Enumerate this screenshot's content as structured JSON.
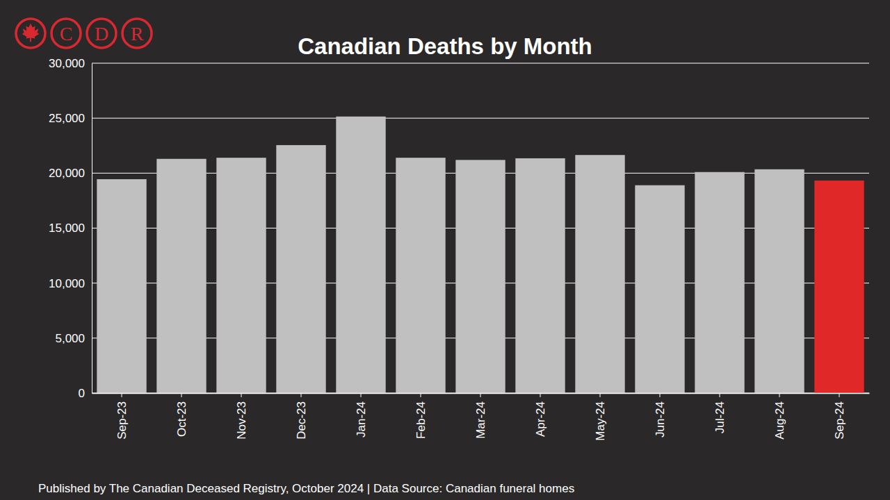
{
  "chart_data": {
    "type": "bar",
    "title": "Canadian Deaths by Month",
    "categories": [
      "Sep-23",
      "Oct-23",
      "Nov-23",
      "Dec-23",
      "Jan-24",
      "Feb-24",
      "Mar-24",
      "Apr-24",
      "May-24",
      "Jun-24",
      "Jul-24",
      "Aug-24",
      "Sep-24"
    ],
    "values": [
      19450,
      21300,
      21400,
      22550,
      25150,
      21400,
      21200,
      21350,
      21650,
      18900,
      20100,
      20350,
      19330
    ],
    "colors": [
      "#c0c0c0",
      "#c0c0c0",
      "#c0c0c0",
      "#c0c0c0",
      "#c0c0c0",
      "#c0c0c0",
      "#c0c0c0",
      "#c0c0c0",
      "#c0c0c0",
      "#c0c0c0",
      "#c0c0c0",
      "#c0c0c0",
      "#e02828"
    ],
    "ylim": [
      0,
      30000
    ],
    "yticks": [
      0,
      {
        "value": 5000,
        "label": "5,000"
      },
      {
        "value": 10000,
        "label": "10,000"
      },
      {
        "value": 15000,
        "label": "15,000"
      },
      {
        "value": 20000,
        "label": "20,000"
      },
      {
        "value": 25000,
        "label": "25,000"
      },
      {
        "value": 30000,
        "label": "30,000"
      }
    ],
    "grid": true,
    "footer": "Published by The Canadian Deceased Registry, October 2024 | Data Source: Canadian funeral homes",
    "logo": [
      "C",
      "D",
      "R"
    ]
  }
}
